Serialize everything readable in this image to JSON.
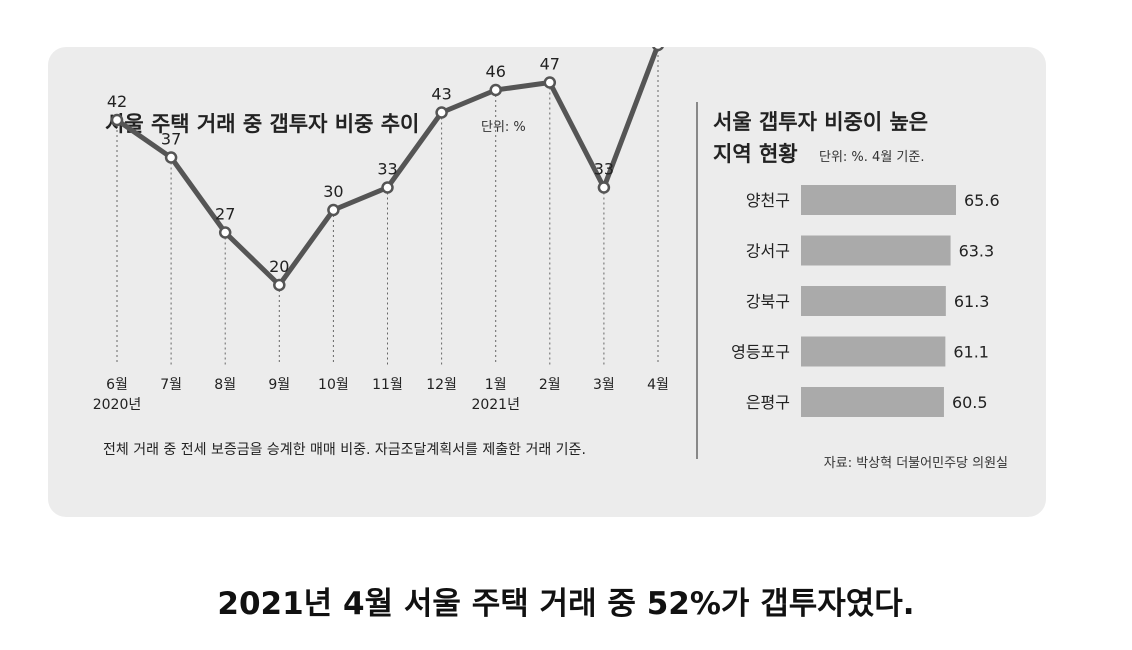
{
  "caption": "2021년 4월 서울 주택 거래 중 52%가 갭투자였다.",
  "chart_data": [
    {
      "type": "line",
      "title": "서울 주택 거래 중 갭투자 비중 추이",
      "unit": "단위: %",
      "x": [
        "6월",
        "7월",
        "8월",
        "9월",
        "10월",
        "11월",
        "12월",
        "1월",
        "2월",
        "3월",
        "4월"
      ],
      "year_labels": [
        {
          "index": 0,
          "label": "2020년"
        },
        {
          "index": 7,
          "label": "2021년"
        }
      ],
      "series": [
        {
          "values": [
            42,
            37,
            27,
            20,
            30,
            33,
            43,
            46,
            47,
            33,
            52
          ]
        }
      ],
      "ylim": [
        15,
        55
      ],
      "grid": "vertical-dotted",
      "line_color": "#555555",
      "marker_fill": "#ffffff",
      "note": "전체 거래 중 전세 보증금을 승계한 매매 비중. 자금조달계획서를 제출한 거래 기준."
    },
    {
      "type": "bar",
      "orientation": "horizontal",
      "title_line1": "서울 갭투자 비중이 높은",
      "title_line2": "지역 현황",
      "unit": "단위: %. 4월 기준.",
      "categories": [
        "양천구",
        "강서구",
        "강북구",
        "영등포구",
        "은평구"
      ],
      "values": [
        65.6,
        63.3,
        61.3,
        61.1,
        60.5
      ],
      "value_labels": [
        "65.6",
        "63.3",
        "61.3",
        "61.1",
        "60.5"
      ],
      "bar_color": "#aaaaaa",
      "source": "자료: 박상혁 더불어민주당 의원실"
    }
  ]
}
